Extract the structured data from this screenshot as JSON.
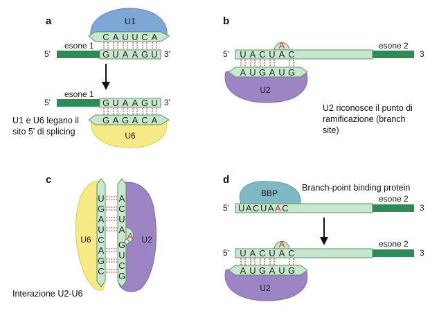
{
  "panels": {
    "a": {
      "letter": "a",
      "u1_label": "U1",
      "u6_label": "U6",
      "exon_label_top": "esone 1",
      "exon_label_bottom": "esone 1",
      "five_prime_top": "5'",
      "three_prime_top": "3'",
      "five_prime_bottom": "5'",
      "three_prime_bottom": "3'",
      "u1_seq": [
        "C",
        "A",
        "U",
        "U",
        "C",
        "A"
      ],
      "mrna_seq_top": [
        "G",
        "U",
        "A",
        "A",
        "G",
        "U"
      ],
      "mrna_seq_bottom": [
        "G",
        "U",
        "A",
        "A",
        "G",
        "U"
      ],
      "u6_seq": [
        "G",
        "A",
        "G",
        "A",
        "C",
        "A"
      ],
      "caption": [
        "U1 e U6 legano il",
        "sito 5' di splicing"
      ]
    },
    "b": {
      "letter": "b",
      "u2_label": "U2",
      "exon_label": "esone 2",
      "five_prime": "5'",
      "three_prime": "3",
      "bulged_a": "A",
      "mrna_seq": [
        "U",
        "A",
        "C",
        "U",
        "A",
        "C"
      ],
      "u2_seq": [
        "A",
        "U",
        "G",
        "A",
        "U",
        "G"
      ],
      "caption": [
        "U2 riconosce il punto di",
        "ramificazione (branch",
        "site)"
      ]
    },
    "c": {
      "letter": "c",
      "u6_label": "U6",
      "u2_label": "U2",
      "u6_seq": [
        "U",
        "G",
        "A",
        "U",
        "C",
        "A",
        "G",
        "C"
      ],
      "u2_seq": [
        "A",
        "C",
        "U",
        "A",
        "G",
        "U",
        "C",
        "G"
      ],
      "bulged_a": "A",
      "caption": "Interazione U2-U6"
    },
    "d": {
      "letter": "d",
      "bbp_label": "BBP",
      "bbp_caption": "Branch-point binding protein",
      "u2_label": "U2",
      "exon_label_top": "esone 2",
      "exon_label_bottom": "esone 2",
      "five_prime_top": "5'",
      "three_prime_top": "3",
      "five_prime_bottom": "5'",
      "three_prime_bottom": "3",
      "mrna_seq_top_a": "UACUA",
      "mrna_seq_top_red": "A",
      "mrna_seq_top_b": "C",
      "bulged_a": "A",
      "mrna_seq_bottom": [
        "U",
        "A",
        "C",
        "U",
        "A",
        "C"
      ],
      "u2_seq": [
        "A",
        "U",
        "G",
        "A",
        "U",
        "G"
      ]
    }
  },
  "colors": {
    "u1_blue": "#7fa7d6",
    "u6_yellow": "#f6ea86",
    "u2_purple": "#9d84c4",
    "bbp_teal": "#7fb9c6",
    "rna_light": "#c9e7cf",
    "exon_dark": "#2e8b57",
    "base_pair_red": "#d24a43"
  }
}
